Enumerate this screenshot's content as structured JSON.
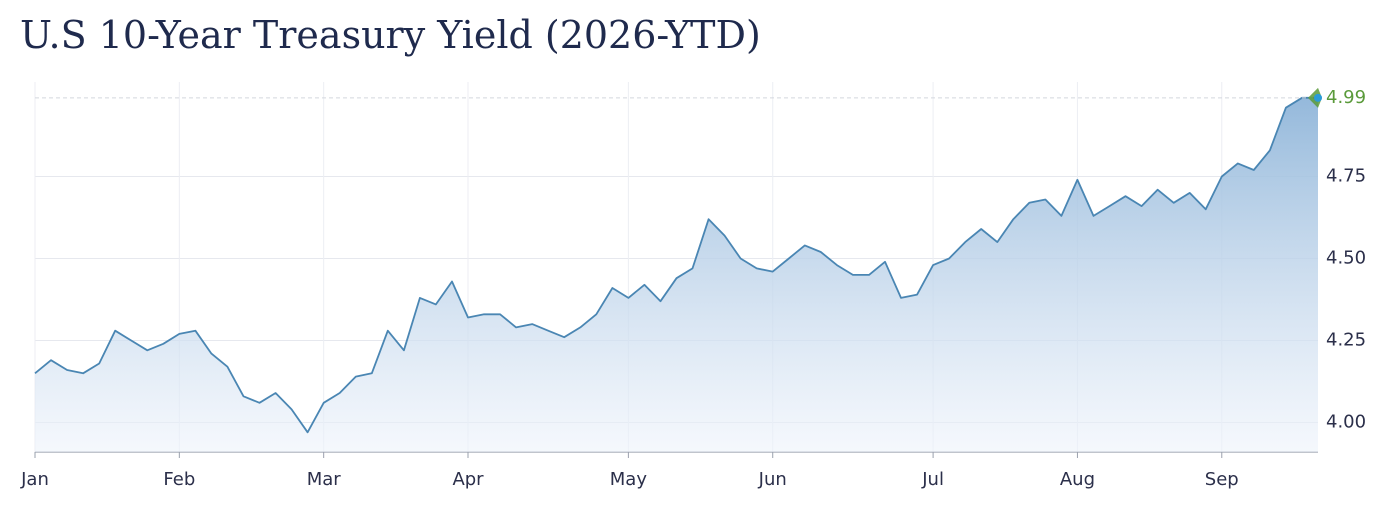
{
  "chart_data": {
    "type": "area",
    "title": "U.S 10-Year Treasury Yield (2026-YTD)",
    "categories": [
      "Jan",
      null,
      null,
      null,
      null,
      null,
      null,
      null,
      null,
      "Feb",
      null,
      null,
      null,
      null,
      null,
      null,
      null,
      null,
      "Mar",
      null,
      null,
      null,
      null,
      null,
      null,
      null,
      null,
      "Apr",
      null,
      null,
      null,
      null,
      null,
      null,
      null,
      null,
      null,
      "May",
      null,
      null,
      null,
      null,
      null,
      null,
      null,
      null,
      "Jun",
      null,
      null,
      null,
      null,
      null,
      null,
      null,
      null,
      null,
      "Jul",
      null,
      null,
      null,
      null,
      null,
      null,
      null,
      null,
      "Aug",
      null,
      null,
      null,
      null,
      null,
      null,
      null,
      null,
      "Sep",
      null,
      null,
      null,
      null,
      null,
      null
    ],
    "series": [
      {
        "color": "#4a86b3",
        "values": [
          4.15,
          4.19,
          4.16,
          4.15,
          4.18,
          4.28,
          4.25,
          4.22,
          4.24,
          4.27,
          4.28,
          4.21,
          4.17,
          4.08,
          4.06,
          4.09,
          4.04,
          3.97,
          4.06,
          4.09,
          4.14,
          4.15,
          4.28,
          4.22,
          4.38,
          4.36,
          4.43,
          4.32,
          4.33,
          4.33,
          4.29,
          4.3,
          4.28,
          4.26,
          4.29,
          4.33,
          4.41,
          4.38,
          4.42,
          4.37,
          4.44,
          4.47,
          4.62,
          4.57,
          4.5,
          4.47,
          4.46,
          4.5,
          4.54,
          4.52,
          4.48,
          4.45,
          4.45,
          4.49,
          4.38,
          4.39,
          4.48,
          4.5,
          4.55,
          4.59,
          4.55,
          4.62,
          4.67,
          4.68,
          4.63,
          4.74,
          4.63,
          4.66,
          4.69,
          4.66,
          4.71,
          4.67,
          4.7,
          4.65,
          4.75,
          4.79,
          4.77,
          4.83,
          4.96,
          4.99,
          4.99
        ]
      }
    ],
    "last_value_color": "#5a9a3a",
    "ylim": [
      3.91,
      5.02
    ],
    "yticks": [
      {
        "value": 4,
        "label": "4.00"
      },
      4.25,
      {
        "value": 4.5,
        "label": "4.50"
      },
      4.75
    ],
    "grid": true
  }
}
